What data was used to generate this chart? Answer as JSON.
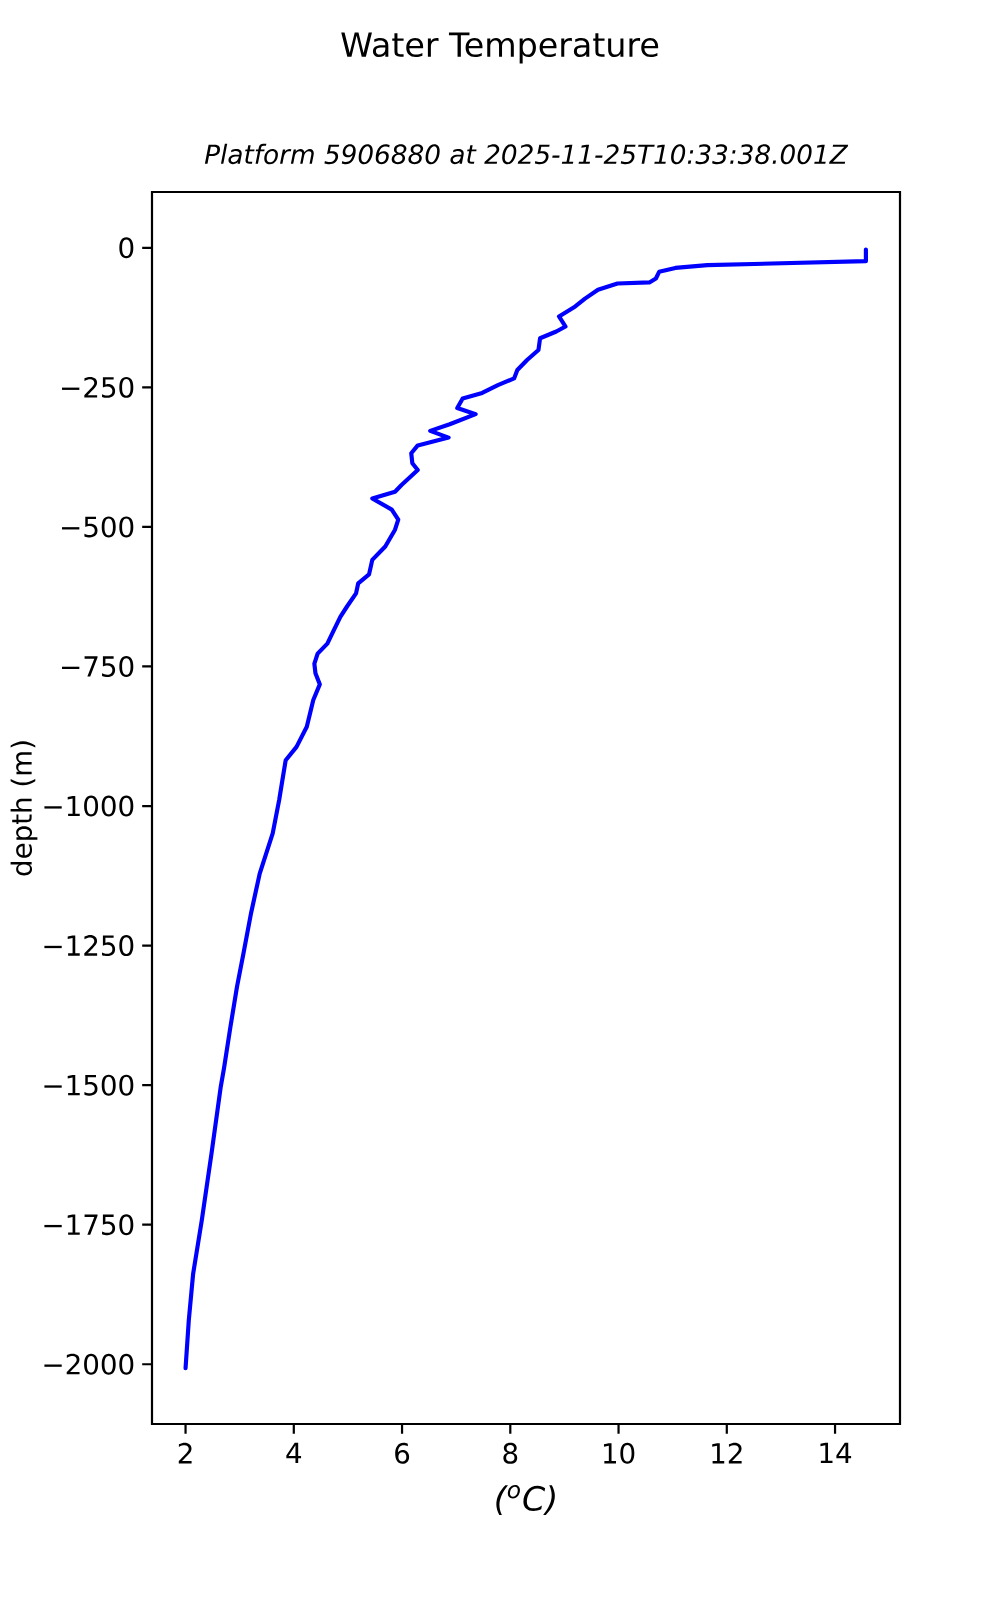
{
  "chart_data": {
    "type": "line",
    "title": "Water Temperature",
    "subtitle": "Platform 5906880 at 2025-11-25T10:33:38.001Z",
    "xlabel": "($^{o}$C)",
    "ylabel": "depth (m)",
    "x": [
      14.57,
      14.57,
      11.64,
      11.05,
      10.75,
      10.69,
      10.57,
      9.98,
      9.62,
      9.38,
      9.2,
      8.9,
      9.02,
      8.85,
      8.55,
      8.52,
      8.31,
      8.13,
      8.07,
      7.77,
      7.48,
      7.12,
      7.02,
      7.36,
      6.88,
      6.52,
      6.86,
      6.29,
      6.17,
      6.19,
      6.29,
      5.99,
      5.87,
      5.45,
      5.81,
      5.93,
      5.87,
      5.69,
      5.45,
      5.39,
      5.19,
      5.15,
      4.98,
      4.86,
      4.74,
      4.62,
      4.44,
      4.38,
      4.4,
      4.48,
      4.36,
      4.24,
      4.05,
      3.85,
      3.79,
      3.73,
      3.61,
      3.49,
      3.37,
      3.21,
      3.07,
      2.95,
      2.83,
      2.71,
      2.65,
      2.48,
      2.3,
      2.14,
      2.06,
      2.0
    ],
    "series": [
      {
        "color": "#0000ff",
        "values": [
          -3,
          -24,
          -31,
          -36,
          -43,
          -55,
          -62,
          -64,
          -75,
          -91,
          -105,
          -123,
          -141,
          -150,
          -162,
          -183,
          -201,
          -219,
          -234,
          -246,
          -260,
          -270,
          -287,
          -298,
          -316,
          -328,
          -340,
          -354,
          -368,
          -386,
          -398,
          -425,
          -437,
          -449,
          -469,
          -487,
          -505,
          -535,
          -559,
          -585,
          -601,
          -619,
          -643,
          -661,
          -685,
          -709,
          -727,
          -745,
          -762,
          -782,
          -810,
          -858,
          -894,
          -918,
          -953,
          -989,
          -1049,
          -1085,
          -1121,
          -1192,
          -1264,
          -1324,
          -1395,
          -1470,
          -1503,
          -1622,
          -1742,
          -1838,
          -1921,
          -2007
        ]
      }
    ],
    "xlim": [
      1.38,
      15.2
    ],
    "ylim": [
      -2107,
      100
    ],
    "xticks": [
      2,
      4,
      6,
      8,
      10,
      12,
      14
    ],
    "yticks": [
      {
        "value": 0,
        "label": "0"
      },
      {
        "value": -250,
        "label": "−250"
      },
      {
        "value": -500,
        "label": "−500"
      },
      {
        "value": -750,
        "label": "−750"
      },
      {
        "value": -1000,
        "label": "−1000"
      },
      {
        "value": -1250,
        "label": "−1250"
      },
      {
        "value": -1500,
        "label": "−1500"
      },
      {
        "value": -1750,
        "label": "−1750"
      },
      {
        "value": -2000,
        "label": "−2000"
      }
    ],
    "line_style": "solid"
  }
}
